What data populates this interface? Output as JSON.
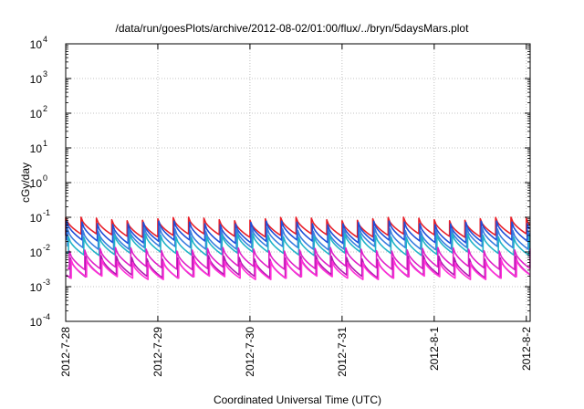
{
  "chart_data": {
    "type": "line",
    "title": "/data/run/goesPlots/archive/2012-08-02/01:00/flux/../bryn/5daysMars.plot",
    "xlabel": "Coordinated Universal Time (UTC)",
    "ylabel": "cGy/day",
    "x_range": [
      "2012-07-28T00:00",
      "2012-08-02T01:00"
    ],
    "x_ticks": [
      "2012-7-28",
      "2012-7-29",
      "2012-7-30",
      "2012-7-31",
      "2012-8-1",
      "2012-8-2"
    ],
    "y_scale": "log",
    "ylim": [
      0.0001,
      10000
    ],
    "y_ticks": [
      {
        "base": "10",
        "exp": "-4",
        "value": 0.0001
      },
      {
        "base": "10",
        "exp": "-3",
        "value": 0.001
      },
      {
        "base": "10",
        "exp": "-2",
        "value": 0.01
      },
      {
        "base": "10",
        "exp": "-1",
        "value": 0.1
      },
      {
        "base": "10",
        "exp": "0",
        "value": 1
      },
      {
        "base": "10",
        "exp": "1",
        "value": 10
      },
      {
        "base": "10",
        "exp": "2",
        "value": 100
      },
      {
        "base": "10",
        "exp": "3",
        "value": 1000
      },
      {
        "base": "10",
        "exp": "4",
        "value": 10000
      }
    ],
    "grid": true,
    "sawtooth_period_hours": 4,
    "series": [
      {
        "color": "#e8202a",
        "peak": 0.09,
        "trough": 0.03
      },
      {
        "color": "#1f4fd8",
        "peak": 0.07,
        "trough": 0.02
      },
      {
        "color": "#3a7fe0",
        "peak": 0.045,
        "trough": 0.013
      },
      {
        "color": "#22b4c8",
        "peak": 0.03,
        "trough": 0.009
      },
      {
        "color": "#e020c8",
        "peak": 0.012,
        "trough": 0.0035
      },
      {
        "color": "#b01ab0",
        "peak": 0.007,
        "trough": 0.002
      },
      {
        "color": "#ff30d8",
        "peak": 0.0055,
        "trough": 0.0018
      }
    ]
  }
}
